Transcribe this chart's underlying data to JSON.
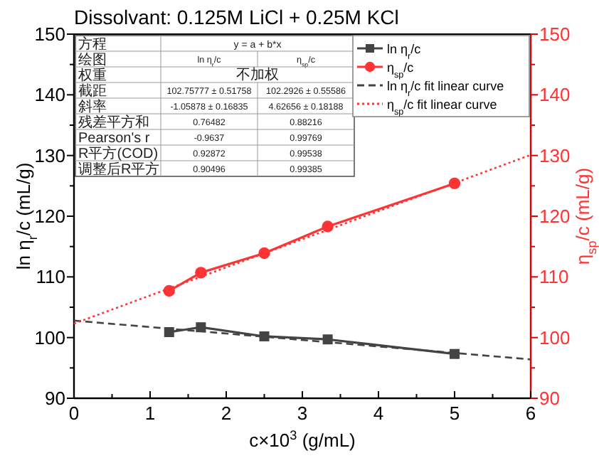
{
  "chart_data": {
    "type": "line",
    "title": "Dissolvant: 0.125M LiCl + 0.25M KCl",
    "xlabel": "c×10$^{3}$ (g/mL)",
    "ylabel": "ln η$_{r}$/c (mL/g)",
    "y2label": "η$_{sp}$/c (mL/g)",
    "xlim": [
      0,
      6
    ],
    "xticks": [
      0,
      {
        "value": 0.5,
        "label": null
      },
      1,
      {
        "value": 1.5,
        "label": null
      },
      2,
      {
        "value": 2.5,
        "label": null
      },
      3,
      {
        "value": 3.5,
        "label": null
      },
      4,
      {
        "value": 4.5,
        "label": null
      },
      5,
      {
        "value": 5.5,
        "label": null
      },
      6
    ],
    "ylim": [
      90,
      150
    ],
    "yticks": [
      90,
      {
        "value": 95,
        "label": null
      },
      100,
      {
        "value": 105,
        "label": null
      },
      110,
      {
        "value": 115,
        "label": null
      },
      120,
      {
        "value": 125,
        "label": null
      },
      130,
      {
        "value": 135,
        "label": null
      },
      140,
      {
        "value": 145,
        "label": null
      },
      150
    ],
    "y2lim": [
      90,
      150
    ],
    "y2ticks": [
      90,
      {
        "value": 95,
        "label": null
      },
      100,
      {
        "value": 105,
        "label": null
      },
      110,
      {
        "value": 115,
        "label": null
      },
      120,
      {
        "value": 125,
        "label": null
      },
      130,
      {
        "value": 135,
        "label": null
      },
      140,
      {
        "value": 145,
        "label": null
      },
      150
    ],
    "legend": "top right",
    "annotations": [
      "方程",
      "y = a + b*x",
      "绘图",
      "ln η$_{r}$/c",
      "η$_{sp}$/c",
      "权重",
      "不加权",
      "截距",
      "102.75777 ± 0.51758",
      "102.2926 ± 0.55586",
      "斜率",
      "-1.05878 ± 0.16835",
      "4.62656 ± 0.18188",
      "残差平方和",
      "0.76482",
      "0.88216",
      "Pearson's r",
      "-0.9637",
      "0.99769",
      "R平方(COD)",
      "0.92872",
      "0.99538",
      "调整后R平方",
      "0.90496",
      "0.99385"
    ],
    "series": [
      {
        "name": "ln η$_{r}$/c",
        "color": "#444444",
        "marker": "square",
        "line_style": "solid",
        "x": [
          1.25,
          1.667,
          2.5,
          3.333,
          5
        ],
        "values": [
          100.9,
          101.7,
          100.2,
          99.7,
          97.3
        ]
      },
      {
        "name": "η$_{sp}$/c",
        "color": "#ff3333",
        "marker": "circle",
        "line_style": "solid",
        "axis": "y2",
        "x": [
          1.25,
          1.667,
          2.5,
          3.333,
          5
        ],
        "values": [
          107.7,
          110.7,
          113.9,
          118.3,
          125.4
        ]
      },
      {
        "name": "ln η$_{r}$/c fit linear curve",
        "color": "#444444",
        "marker": "none",
        "line_style": "dashed",
        "x": [
          0,
          6
        ],
        "values": [
          102.8,
          96.4
        ]
      },
      {
        "name": "η$_{sp}$/c fit linear curve",
        "color": "#ff3333",
        "marker": "none",
        "line_style": "dotted",
        "axis": "y2",
        "x": [
          0,
          6
        ],
        "values": [
          102.3,
          130.1
        ]
      }
    ]
  }
}
